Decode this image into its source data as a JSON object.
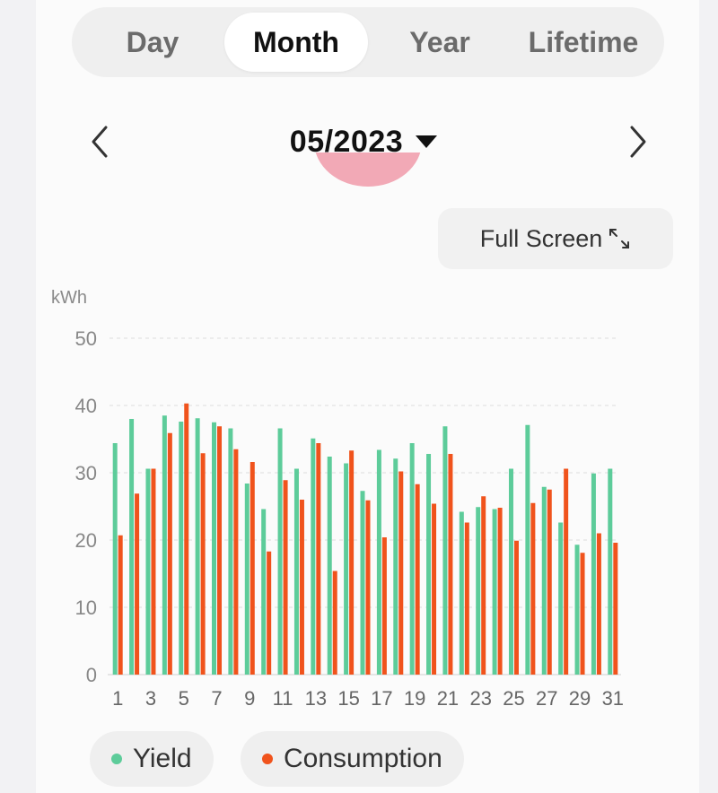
{
  "tabs": [
    {
      "label": "Day",
      "active": false
    },
    {
      "label": "Month",
      "active": true
    },
    {
      "label": "Year",
      "active": false
    },
    {
      "label": "Lifetime",
      "active": false
    }
  ],
  "date_selector": {
    "value": "05/2023"
  },
  "toolbar": {
    "fullscreen_label": "Full Screen"
  },
  "colors": {
    "yield": "#5dcc9a",
    "consumption": "#f0531c"
  },
  "legend": {
    "yield_label": "Yield",
    "consumption_label": "Consumption"
  },
  "chart_data": {
    "type": "bar",
    "ylabel": "kWh",
    "ylim": [
      0,
      50
    ],
    "yticks": [
      "0",
      "10",
      "20",
      "30",
      "40",
      "50"
    ],
    "grid": true,
    "legend_position": "bottom",
    "categories": [
      "1",
      "2",
      "3",
      "4",
      "5",
      "6",
      "7",
      "8",
      "9",
      "10",
      "11",
      "12",
      "13",
      "14",
      "15",
      "16",
      "17",
      "18",
      "19",
      "20",
      "21",
      "22",
      "23",
      "24",
      "25",
      "26",
      "27",
      "28",
      "29",
      "30",
      "31"
    ],
    "xtick_labels": [
      "1",
      "3",
      "5",
      "7",
      "9",
      "11",
      "13",
      "15",
      "17",
      "19",
      "21",
      "23",
      "25",
      "27",
      "29",
      "31"
    ],
    "series": [
      {
        "name": "Yield",
        "color": "#5dcc9a",
        "values": [
          34.4,
          38.0,
          30.6,
          38.5,
          37.6,
          38.1,
          37.5,
          36.6,
          28.4,
          24.6,
          36.6,
          30.6,
          35.1,
          32.4,
          31.4,
          27.3,
          33.4,
          32.1,
          34.4,
          32.8,
          36.9,
          24.2,
          24.9,
          24.6,
          30.6,
          37.1,
          27.9,
          22.6,
          19.3,
          29.9,
          30.6
        ]
      },
      {
        "name": "Consumption",
        "color": "#f0531c",
        "values": [
          20.7,
          26.9,
          30.6,
          35.9,
          40.3,
          32.9,
          36.9,
          33.5,
          31.6,
          18.3,
          28.9,
          26.0,
          34.4,
          15.4,
          33.3,
          25.9,
          20.4,
          30.2,
          28.3,
          25.4,
          32.8,
          22.6,
          26.5,
          24.8,
          19.9,
          25.5,
          27.5,
          30.6,
          18.1,
          21.0,
          19.6
        ]
      }
    ]
  }
}
